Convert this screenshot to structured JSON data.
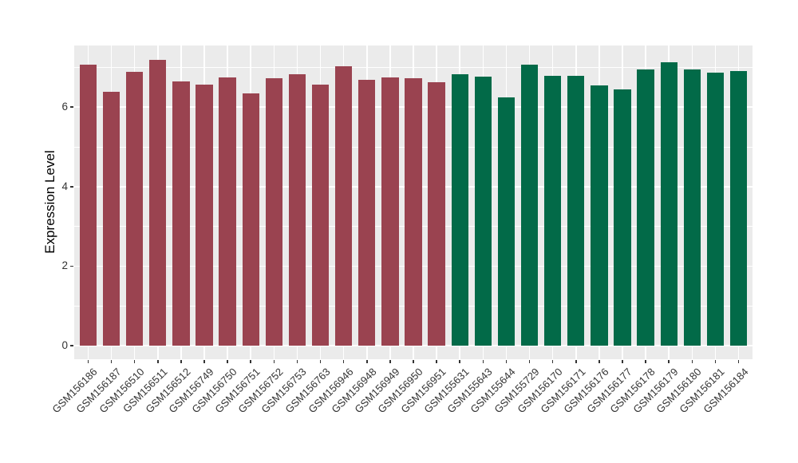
{
  "chart_data": {
    "type": "bar",
    "title": "",
    "xlabel": "",
    "ylabel": "Expression Level",
    "legend_position": "none",
    "grid": true,
    "panel_bg": "#EBEBEB",
    "grid_color": "#FFFFFF",
    "ylim": [
      -0.34,
      7.55
    ],
    "yticks": [
      0,
      2,
      4,
      6
    ],
    "yticks_minor": [
      1,
      3,
      5,
      7
    ],
    "bar_width_fraction": 0.73,
    "categories": [
      "GSM156186",
      "GSM156187",
      "GSM156510",
      "GSM156511",
      "GSM156512",
      "GSM156749",
      "GSM156750",
      "GSM156751",
      "GSM156752",
      "GSM156753",
      "GSM156763",
      "GSM156946",
      "GSM156948",
      "GSM156949",
      "GSM156950",
      "GSM156951",
      "GSM155631",
      "GSM155643",
      "GSM155644",
      "GSM155729",
      "GSM156170",
      "GSM156171",
      "GSM156176",
      "GSM156177",
      "GSM156178",
      "GSM156179",
      "GSM156180",
      "GSM156181",
      "GSM156184"
    ],
    "values": [
      7.07,
      6.39,
      6.89,
      7.19,
      6.65,
      6.57,
      6.75,
      6.35,
      6.72,
      6.83,
      6.57,
      7.02,
      6.69,
      6.74,
      6.72,
      6.62,
      6.83,
      6.77,
      6.25,
      7.07,
      6.79,
      6.79,
      6.54,
      6.44,
      6.95,
      7.13,
      6.95,
      6.87,
      6.91
    ],
    "groups": [
      "group1",
      "group1",
      "group1",
      "group1",
      "group1",
      "group1",
      "group1",
      "group1",
      "group1",
      "group1",
      "group1",
      "group1",
      "group1",
      "group1",
      "group1",
      "group1",
      "group2",
      "group2",
      "group2",
      "group2",
      "group2",
      "group2",
      "group2",
      "group2",
      "group2",
      "group2",
      "group2",
      "group2",
      "group2"
    ],
    "group_colors": {
      "group1": "#9A4350",
      "group2": "#026A48"
    }
  }
}
